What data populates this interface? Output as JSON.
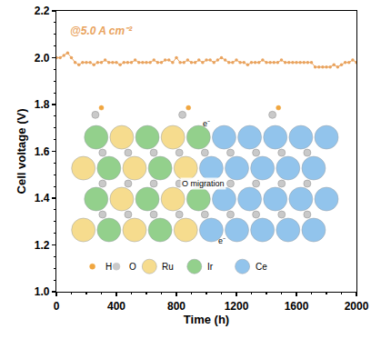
{
  "chart_data": {
    "type": "line",
    "x_label": "Time (h)",
    "y_label": "Cell voltage (V)",
    "annotation": "@5.0 A cm⁻²",
    "marker": "circle",
    "line_style": "solid",
    "color": "#e9a35e",
    "x": [
      0,
      25,
      50,
      75,
      100,
      125,
      150,
      175,
      200,
      225,
      250,
      275,
      300,
      325,
      350,
      375,
      400,
      425,
      450,
      475,
      500,
      525,
      550,
      575,
      600,
      625,
      650,
      675,
      700,
      725,
      750,
      775,
      800,
      825,
      850,
      875,
      900,
      925,
      950,
      975,
      1000,
      1025,
      1050,
      1075,
      1100,
      1125,
      1150,
      1175,
      1200,
      1225,
      1250,
      1275,
      1300,
      1325,
      1350,
      1375,
      1400,
      1425,
      1450,
      1475,
      1500,
      1525,
      1550,
      1575,
      1600,
      1625,
      1650,
      1675,
      1700,
      1725,
      1750,
      1775,
      1800,
      1825,
      1850,
      1875,
      1900,
      1925,
      1950,
      1975,
      2000
    ],
    "values": [
      2.0,
      2.0,
      2.01,
      2.02,
      2.0,
      1.98,
      1.97,
      1.98,
      1.98,
      1.98,
      1.97,
      1.98,
      1.98,
      1.99,
      1.98,
      1.98,
      1.98,
      1.97,
      1.98,
      1.98,
      1.98,
      1.99,
      1.98,
      1.98,
      1.98,
      1.98,
      1.99,
      1.98,
      1.98,
      1.99,
      1.99,
      1.98,
      2.0,
      1.98,
      1.98,
      1.99,
      1.98,
      1.98,
      1.99,
      1.98,
      1.99,
      1.99,
      1.98,
      1.99,
      2.0,
      1.99,
      1.98,
      1.98,
      1.99,
      1.98,
      1.98,
      1.97,
      1.98,
      1.98,
      1.98,
      1.99,
      1.98,
      1.98,
      1.98,
      1.98,
      1.99,
      1.98,
      1.98,
      1.98,
      1.98,
      1.98,
      1.98,
      1.98,
      1.98,
      1.96,
      1.96,
      1.96,
      1.96,
      1.96,
      1.97,
      1.96,
      1.97,
      1.98,
      1.98,
      1.99,
      1.98
    ],
    "xlim": [
      0,
      2000
    ],
    "xticks": [
      0,
      400,
      800,
      1200,
      1600,
      2000
    ],
    "ylim": [
      1.0,
      2.2
    ],
    "yticks": [
      {
        "value": 1.0,
        "label": "1.0"
      },
      {
        "value": 1.2,
        "label": "1.2"
      },
      {
        "value": 1.4,
        "label": "1.4"
      },
      {
        "value": 1.6,
        "label": "1.6"
      },
      {
        "value": 1.8,
        "label": "1.8"
      },
      {
        "value": 2.0,
        "label": "2.0"
      },
      {
        "value": 2.2,
        "label": "2.2"
      }
    ],
    "grid": false,
    "inset": {
      "legend": [
        {
          "label": "H",
          "color": "#f0a640"
        },
        {
          "label": "O",
          "color": "#c9c9c9"
        },
        {
          "label": "Ru",
          "color": "#f6dc8e"
        },
        {
          "label": "Ir",
          "color": "#93d08c"
        },
        {
          "label": "Ce",
          "color": "#92c4ec"
        }
      ],
      "labels": [
        "O migration",
        "e⁻",
        "e⁻"
      ]
    }
  }
}
